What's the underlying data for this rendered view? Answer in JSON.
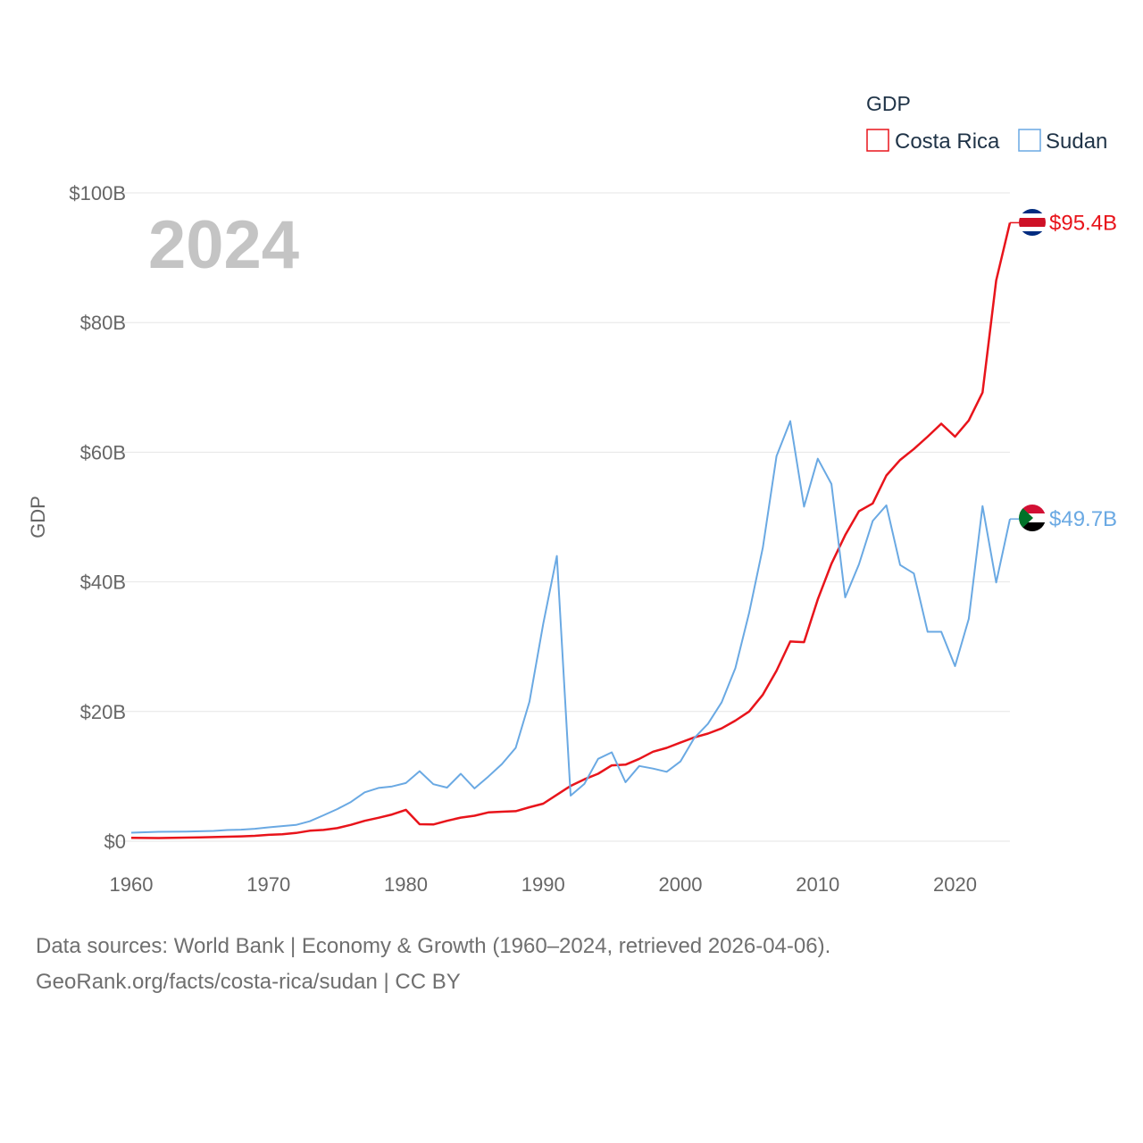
{
  "chart_data": {
    "type": "line",
    "ylabel": "GDP",
    "ylim": [
      0,
      100
    ],
    "xlim": [
      1960,
      2024
    ],
    "y_ticks": [
      0,
      20,
      40,
      60,
      80,
      100
    ],
    "y_tick_labels": [
      "$0",
      "$20B",
      "$40B",
      "$60B",
      "$80B",
      "$100B"
    ],
    "x_ticks": [
      1960,
      1970,
      1980,
      1990,
      2000,
      2010,
      2020
    ],
    "x_tick_labels": [
      "1960",
      "1970",
      "1980",
      "1990",
      "2000",
      "2010",
      "2020"
    ],
    "year_label": "2024",
    "legend": {
      "title": "GDP",
      "position": "top-right"
    },
    "grid": true,
    "x": [
      1960,
      1961,
      1962,
      1963,
      1964,
      1965,
      1966,
      1967,
      1968,
      1969,
      1970,
      1971,
      1972,
      1973,
      1974,
      1975,
      1976,
      1977,
      1978,
      1979,
      1980,
      1981,
      1982,
      1983,
      1984,
      1985,
      1986,
      1987,
      1988,
      1989,
      1990,
      1991,
      1992,
      1993,
      1994,
      1995,
      1996,
      1997,
      1998,
      1999,
      2000,
      2001,
      2002,
      2003,
      2004,
      2005,
      2006,
      2007,
      2008,
      2009,
      2010,
      2011,
      2012,
      2013,
      2014,
      2015,
      2016,
      2017,
      2018,
      2019,
      2020,
      2021,
      2022,
      2023,
      2024
    ],
    "series": [
      {
        "name": "Costa Rica",
        "color": "#e8141b",
        "end_label": "$95.4B",
        "flag": "costa-rica",
        "values": [
          0.51,
          0.49,
          0.48,
          0.51,
          0.55,
          0.59,
          0.64,
          0.69,
          0.75,
          0.83,
          0.98,
          1.08,
          1.27,
          1.61,
          1.73,
          2.01,
          2.52,
          3.14,
          3.61,
          4.12,
          4.83,
          2.62,
          2.57,
          3.14,
          3.63,
          3.92,
          4.43,
          4.55,
          4.63,
          5.23,
          5.79,
          7.15,
          8.53,
          9.55,
          10.4,
          11.7,
          11.8,
          12.7,
          13.8,
          14.4,
          15.2,
          16.0,
          16.6,
          17.4,
          18.6,
          20.0,
          22.6,
          26.3,
          30.8,
          30.7,
          37.3,
          42.8,
          47.2,
          50.9,
          52.1,
          56.4,
          58.8,
          60.5,
          62.4,
          64.4,
          62.4,
          64.9,
          69.2,
          86.5,
          95.4
        ]
      },
      {
        "name": "Sudan",
        "color": "#6aa9e3",
        "end_label": "$49.7B",
        "flag": "sudan",
        "values": [
          1.31,
          1.38,
          1.45,
          1.46,
          1.49,
          1.53,
          1.58,
          1.72,
          1.77,
          1.92,
          2.13,
          2.33,
          2.51,
          3.07,
          3.99,
          4.95,
          6.05,
          7.53,
          8.21,
          8.45,
          8.97,
          10.8,
          8.79,
          8.26,
          10.4,
          8.14,
          9.96,
          11.9,
          14.4,
          21.5,
          33.5,
          44.0,
          7.02,
          8.83,
          12.7,
          13.7,
          9.09,
          11.6,
          11.2,
          10.7,
          12.3,
          15.9,
          18.1,
          21.4,
          26.7,
          35.2,
          45.3,
          59.4,
          64.8,
          51.6,
          59.0,
          55.1,
          37.6,
          42.7,
          49.4,
          51.8,
          42.6,
          41.3,
          32.3,
          32.3,
          27.0,
          34.3,
          51.7,
          39.9,
          49.7
        ]
      }
    ]
  },
  "footer": {
    "line1": "Data sources: World Bank | Economy & Growth (1960–2024, retrieved 2026-04-06).",
    "line2": "GeoRank.org/facts/costa-rica/sudan | CC BY"
  }
}
